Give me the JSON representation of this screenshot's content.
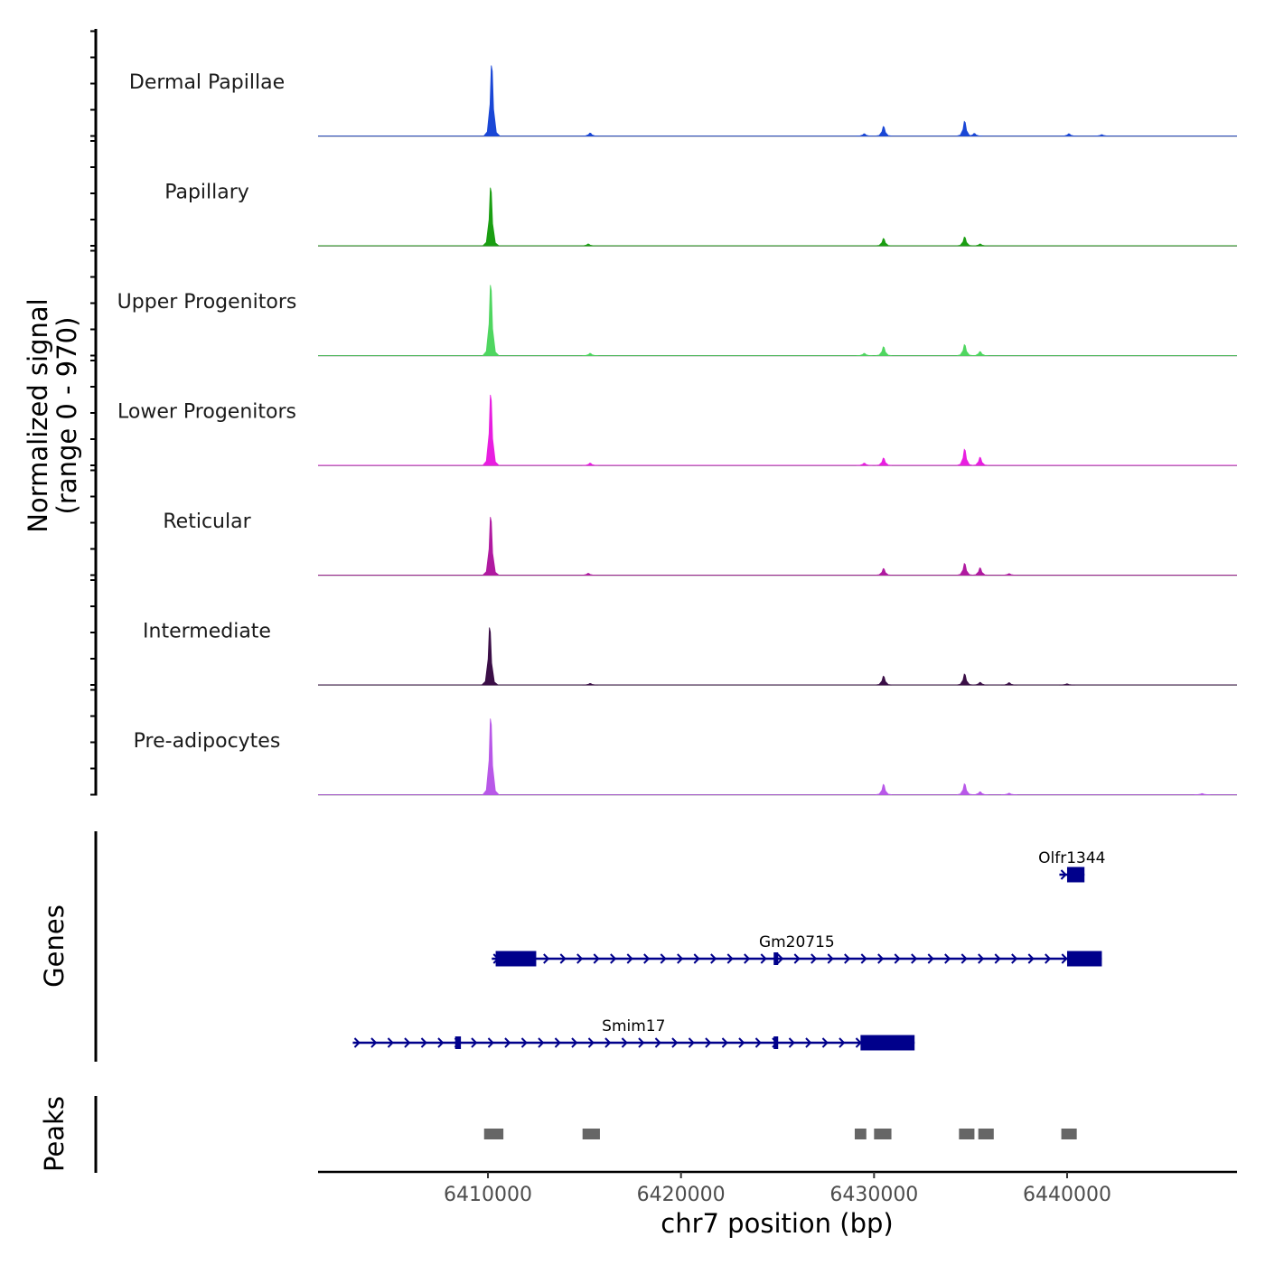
{
  "chart_data": {
    "type": "area",
    "title": "",
    "ylabel_line1": "Normalized signal",
    "ylabel_line2": "(range 0 - 970)",
    "xlabel": "chr7 position (bp)",
    "ylim": [
      0,
      970
    ],
    "xlim": [
      6401200,
      6448800
    ],
    "xticks": [
      6410000,
      6420000,
      6430000,
      6440000
    ],
    "xtick_labels": [
      "6410000",
      "6420000",
      "6430000",
      "6440000"
    ],
    "tracks": [
      {
        "name": "Dermal Papillae",
        "color": "#1a47d6",
        "peaks": [
          [
            6410200,
            970
          ],
          [
            6415300,
            40
          ],
          [
            6429500,
            30
          ],
          [
            6430500,
            130
          ],
          [
            6434700,
            200
          ],
          [
            6435200,
            35
          ],
          [
            6440100,
            30
          ],
          [
            6441800,
            18
          ]
        ]
      },
      {
        "name": "Papillary",
        "color": "#1a9e12",
        "peaks": [
          [
            6410150,
            800
          ],
          [
            6415200,
            25
          ],
          [
            6430500,
            100
          ],
          [
            6434700,
            120
          ],
          [
            6435500,
            25
          ]
        ]
      },
      {
        "name": "Upper Progenitors",
        "color": "#4fd660",
        "peaks": [
          [
            6410150,
            970
          ],
          [
            6415300,
            30
          ],
          [
            6429500,
            30
          ],
          [
            6430500,
            120
          ],
          [
            6434700,
            150
          ],
          [
            6435500,
            55
          ]
        ]
      },
      {
        "name": "Lower Progenitors",
        "color": "#e81ee0",
        "peaks": [
          [
            6410150,
            970
          ],
          [
            6415300,
            30
          ],
          [
            6429500,
            30
          ],
          [
            6430500,
            100
          ],
          [
            6434700,
            220
          ],
          [
            6435500,
            110
          ]
        ]
      },
      {
        "name": "Reticular",
        "color": "#b01aa0",
        "peaks": [
          [
            6410150,
            800
          ],
          [
            6415200,
            25
          ],
          [
            6430500,
            90
          ],
          [
            6434700,
            160
          ],
          [
            6435500,
            100
          ],
          [
            6437000,
            20
          ]
        ]
      },
      {
        "name": "Intermediate",
        "color": "#3b0f47",
        "peaks": [
          [
            6410100,
            790
          ],
          [
            6415300,
            20
          ],
          [
            6430500,
            120
          ],
          [
            6434700,
            150
          ],
          [
            6435500,
            35
          ],
          [
            6437000,
            30
          ],
          [
            6440000,
            15
          ]
        ]
      },
      {
        "name": "Pre-adipocytes",
        "color": "#b858e8",
        "peaks": [
          [
            6410150,
            1100
          ],
          [
            6430500,
            140
          ],
          [
            6434700,
            150
          ],
          [
            6435500,
            40
          ],
          [
            6437000,
            20
          ],
          [
            6447000,
            15
          ]
        ]
      }
    ],
    "genes_label": "Genes",
    "genes": [
      {
        "name": "Olfr1344",
        "strand": "+",
        "start": 6439600,
        "end": 6440900,
        "exons": [
          [
            6440000,
            6440900
          ]
        ]
      },
      {
        "name": "Gm20715",
        "strand": "+",
        "start": 6410200,
        "end": 6441800,
        "exons": [
          [
            6410400,
            6412500
          ],
          [
            6424800,
            6425000
          ],
          [
            6440000,
            6441800
          ]
        ]
      },
      {
        "name": "Smim17",
        "strand": "+",
        "start": 6403000,
        "end": 6432100,
        "exons": [
          [
            6408300,
            6408600
          ],
          [
            6424800,
            6425000
          ],
          [
            6429300,
            6432100
          ]
        ]
      }
    ],
    "peaks_label": "Peaks",
    "peak_regions": [
      [
        6409800,
        6410800
      ],
      [
        6414900,
        6415800
      ],
      [
        6429000,
        6429600
      ],
      [
        6430000,
        6430900
      ],
      [
        6434400,
        6435200
      ],
      [
        6435400,
        6436200
      ],
      [
        6439700,
        6440500
      ]
    ]
  }
}
